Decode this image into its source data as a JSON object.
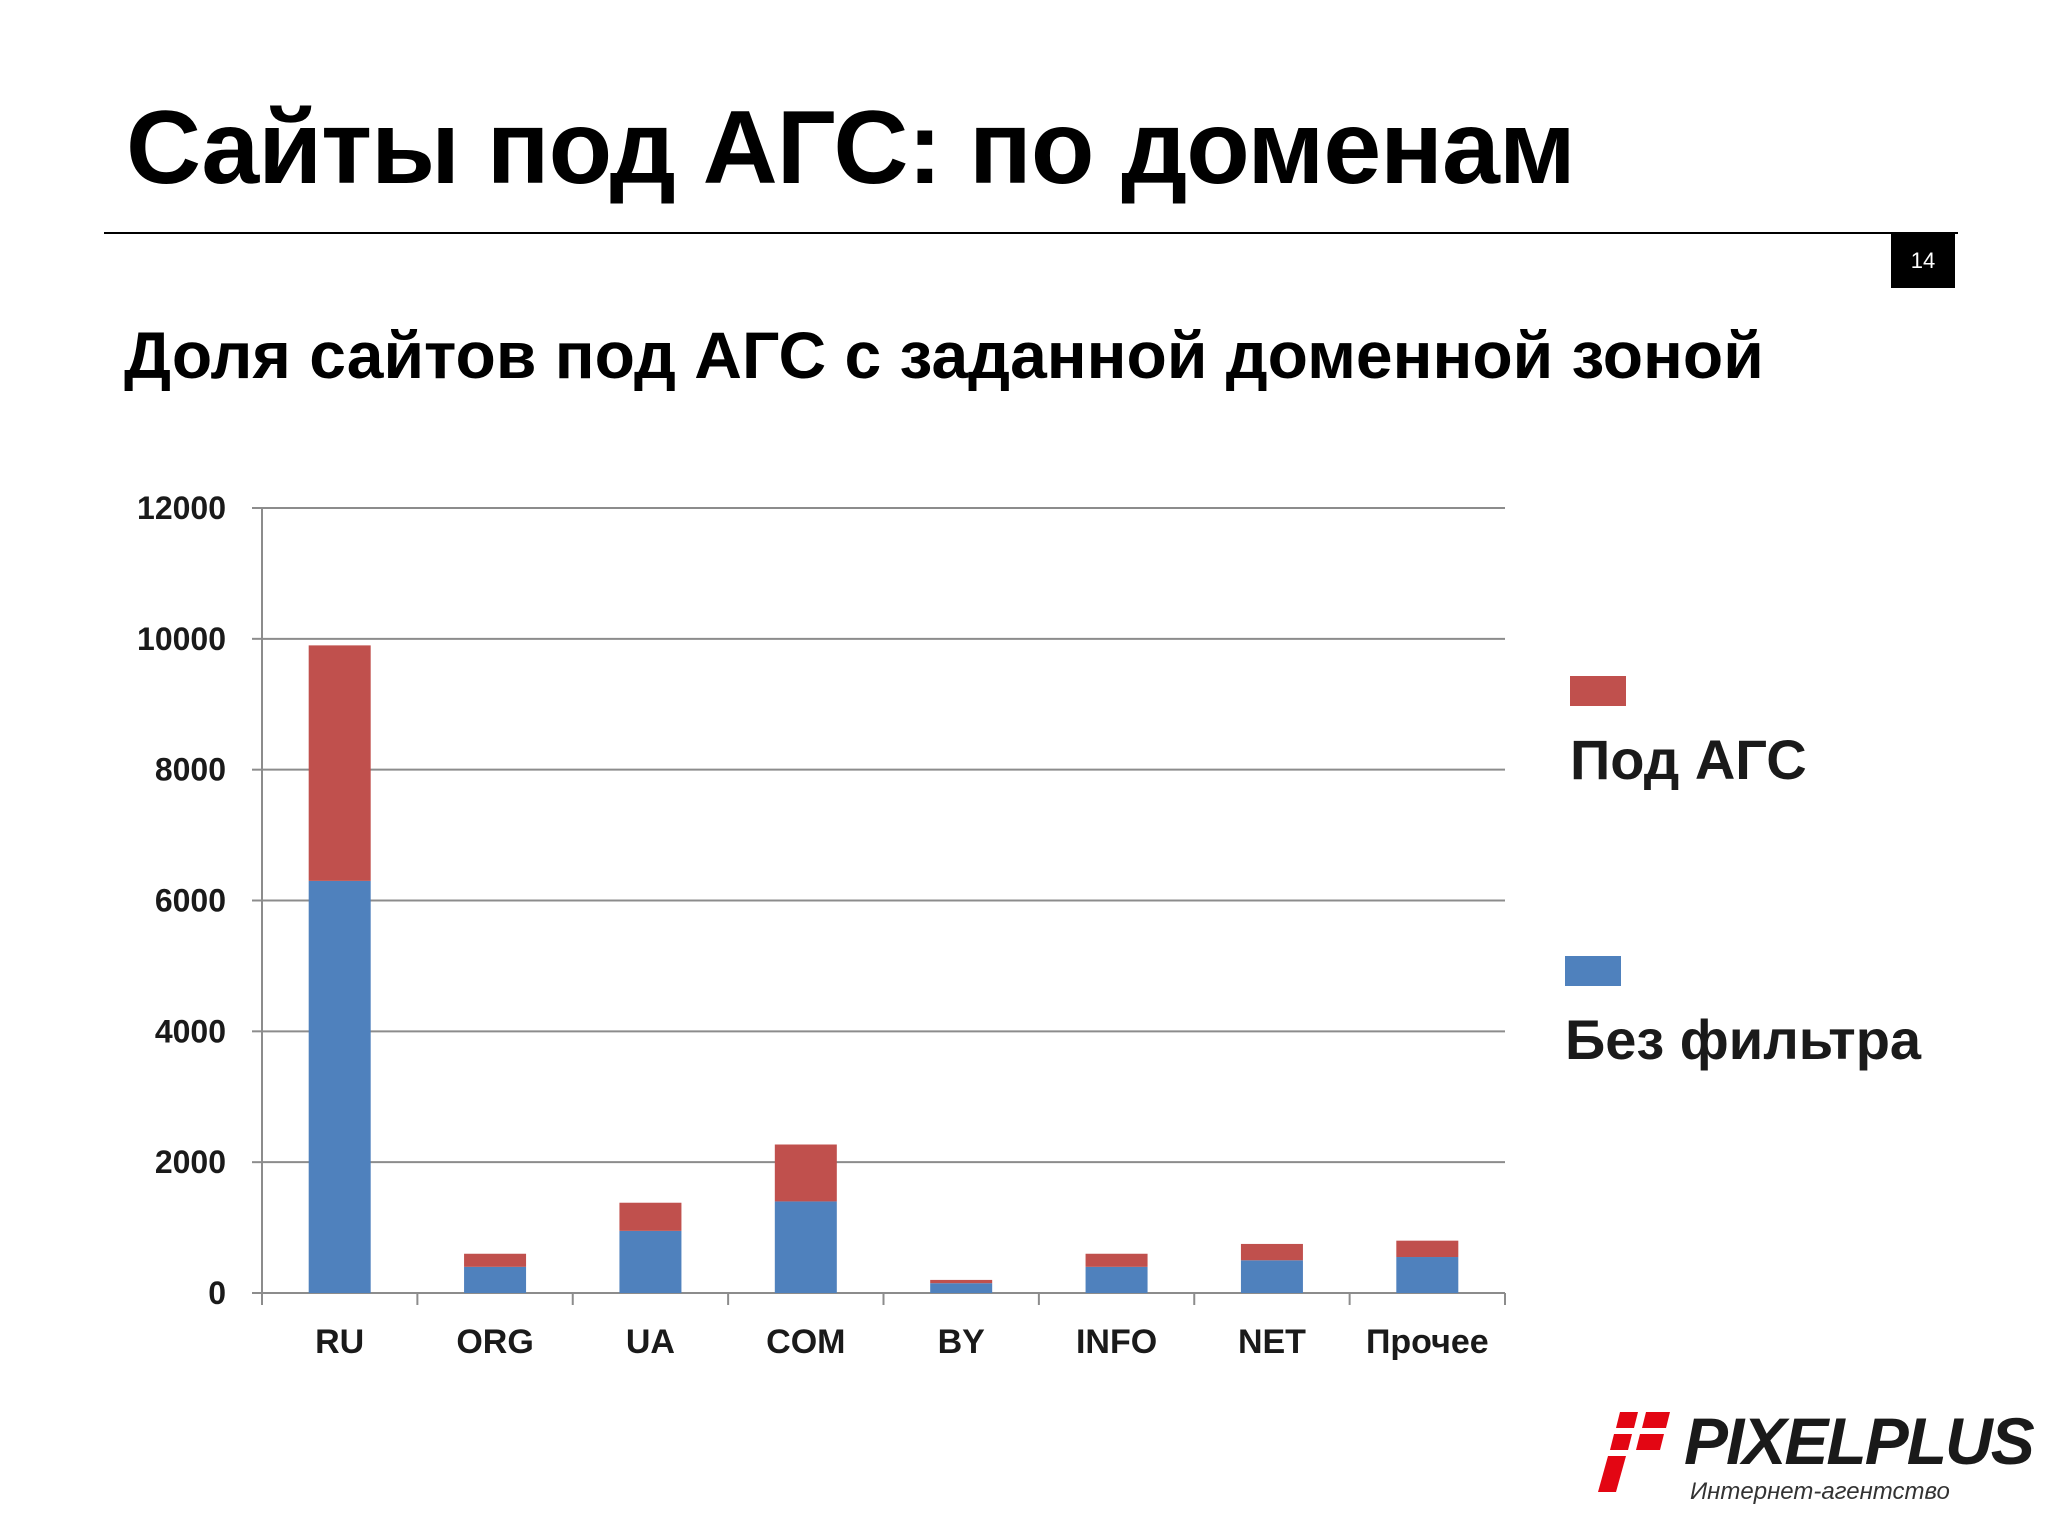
{
  "slide": {
    "title": "Сайты под АГС: по доменам",
    "page_number": "14",
    "subtitle": "Доля сайтов под АГС с заданной доменной зоной"
  },
  "chart_data": {
    "type": "bar",
    "stacked": true,
    "categories": [
      "RU",
      "ORG",
      "UA",
      "COM",
      "BY",
      "INFO",
      "NET",
      "Прочее"
    ],
    "series": [
      {
        "name": "Без фильтра",
        "color": "#4f81bd",
        "values": [
          6300,
          400,
          950,
          1400,
          150,
          400,
          500,
          550
        ]
      },
      {
        "name": "Под АГС",
        "color": "#c0504d",
        "values": [
          3600,
          200,
          430,
          870,
          50,
          200,
          250,
          250
        ]
      }
    ],
    "ylim": [
      0,
      12000
    ],
    "yticks": [
      0,
      2000,
      4000,
      6000,
      8000,
      10000,
      12000
    ],
    "grid": true,
    "legend_position": "right"
  },
  "legend": {
    "items": [
      {
        "label": "Под АГС",
        "color": "#c0504d"
      },
      {
        "label": "Без фильтра",
        "color": "#4f81bd"
      }
    ]
  },
  "logo": {
    "name": "PIXELPLUS",
    "tagline": "Интернет-агентство"
  }
}
